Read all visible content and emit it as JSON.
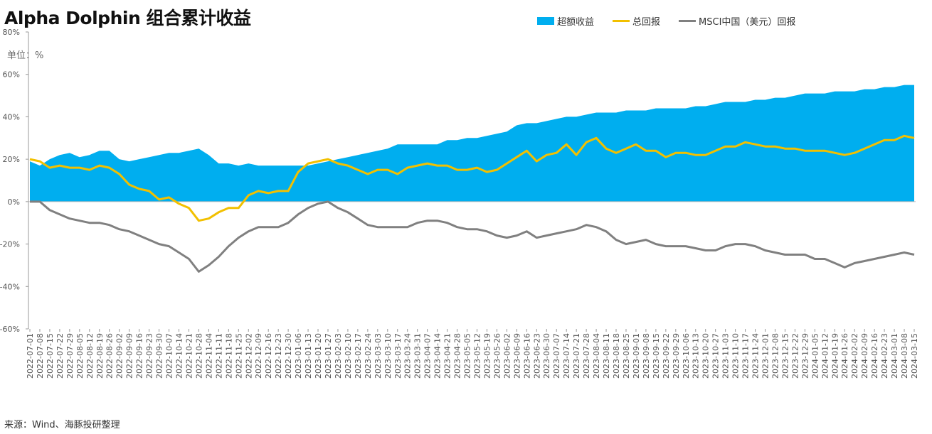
{
  "chart_data": {
    "type": "area",
    "title": "Alpha Dolphin 组合累计收益",
    "unit": "单位：%",
    "source": "来源：Wind、海豚投研整理",
    "ylim": [
      -60,
      80
    ],
    "yticks": [
      -60,
      -40,
      -20,
      0,
      20,
      40,
      60,
      80
    ],
    "ytick_labels": [
      "-60%",
      "-40%",
      "-20%",
      "0%",
      "20%",
      "40%",
      "60%",
      "80%"
    ],
    "legend_position": "top",
    "grid": false,
    "x": [
      "2022-07-01",
      "2022-07-08",
      "2022-07-15",
      "2022-07-22",
      "2022-07-29",
      "2022-08-05",
      "2022-08-12",
      "2022-08-19",
      "2022-08-26",
      "2022-09-02",
      "2022-09-09",
      "2022-09-16",
      "2022-09-23",
      "2022-09-30",
      "2022-10-07",
      "2022-10-14",
      "2022-10-21",
      "2022-10-28",
      "2022-11-04",
      "2022-11-11",
      "2022-11-18",
      "2022-11-25",
      "2022-12-02",
      "2022-12-09",
      "2022-12-16",
      "2022-12-23",
      "2022-12-30",
      "2023-01-06",
      "2023-01-13",
      "2023-01-20",
      "2023-01-27",
      "2023-02-03",
      "2023-02-10",
      "2023-02-17",
      "2023-02-24",
      "2023-03-03",
      "2023-03-10",
      "2023-03-17",
      "2023-03-24",
      "2023-03-31",
      "2023-04-07",
      "2023-04-14",
      "2023-04-21",
      "2023-04-28",
      "2023-05-05",
      "2023-05-12",
      "2023-05-19",
      "2023-05-26",
      "2023-06-02",
      "2023-06-09",
      "2023-06-16",
      "2023-06-23",
      "2023-06-30",
      "2023-07-07",
      "2023-07-14",
      "2023-07-21",
      "2023-07-28",
      "2023-08-04",
      "2023-08-11",
      "2023-08-18",
      "2023-08-25",
      "2023-09-01",
      "2023-09-08",
      "2023-09-15",
      "2023-09-22",
      "2023-09-29",
      "2023-10-06",
      "2023-10-13",
      "2023-10-20",
      "2023-10-27",
      "2023-11-03",
      "2023-11-10",
      "2023-11-17",
      "2023-11-24",
      "2023-12-01",
      "2023-12-08",
      "2023-12-15",
      "2023-12-22",
      "2023-12-29",
      "2024-01-05",
      "2024-01-12",
      "2024-01-19",
      "2024-01-26",
      "2024-02-02",
      "2024-02-09",
      "2024-02-16",
      "2024-02-23",
      "2024-03-01",
      "2024-03-08",
      "2024-03-15"
    ],
    "xtick_labels": [
      "2022-07-01",
      "2022-07-08",
      "2022-07-15",
      "2022-07-22",
      "2022-07-29",
      "2022-08-05",
      "2022-08-12",
      "2022-08-19",
      "2022-08-26",
      "2022-09-02",
      "2022-09-09",
      "2022-09-16",
      "2022-09-23",
      "2022-09-30",
      "2022-10-07",
      "2022-10-14",
      "2022-10-21",
      "2022-10-28",
      "2022-11-04",
      "2022-11-11",
      "2022-11-18",
      "2022-11-25",
      "2022-12-02",
      "2022-12-09",
      "2022-12-16",
      "2022-12-23",
      "2022-12-30",
      "2023-01-06",
      "2023-01-13",
      "2023-01-20",
      "2023-01-27",
      "2023-02-03",
      "2023-02-10",
      "2023-02-17",
      "2023-02-24",
      "2023-03-03",
      "2023-03-10",
      "2023-03-17",
      "2023-03-24",
      "2023-03-31",
      "2023-04-07",
      "2023-04-14",
      "2023-04-21",
      "2023-04-28",
      "2023-05-05",
      "2023-05-12",
      "2023-05-19",
      "2023-05-26",
      "2023-06-02",
      "2023-06-09",
      "2023-06-16",
      "2023-06-23",
      "2023-06-30",
      "2023-07-07",
      "2023-07-14",
      "2023-07-21",
      "2023-07-28",
      "2023-08-04",
      "2023-08-11",
      "2023-08-18",
      "2023-08-25",
      "2023-09-01",
      "2023-09-08",
      "2023-09-15",
      "2023-09-22",
      "2023-09-29",
      "2023-10-06",
      "2023-10-13",
      "2023-10-20",
      "2023-10-27",
      "2023-11-03",
      "2023-11-10",
      "2023-11-17",
      "2023-11-24",
      "2023-12-01",
      "2023-12-08",
      "2023-12-15",
      "2023-12-22",
      "2023-12-29",
      "2024-01-05",
      "2024-01-12",
      "2024-01-19",
      "2024-01-26",
      "2024-02-02",
      "2024-02-09",
      "2024-02-16",
      "2024-02-23",
      "2024-03-01",
      "2024-03-08",
      "2024-03-15"
    ],
    "series": [
      {
        "name": "超额收益",
        "type": "area",
        "color": "#00AEEF",
        "values": [
          19,
          17,
          20,
          22,
          23,
          21,
          22,
          24,
          24,
          20,
          19,
          20,
          21,
          22,
          23,
          23,
          24,
          25,
          22,
          18,
          18,
          17,
          18,
          17,
          17,
          17,
          17,
          17,
          17,
          18,
          19,
          20,
          21,
          22,
          23,
          24,
          25,
          27,
          27,
          27,
          27,
          27,
          29,
          29,
          30,
          30,
          31,
          32,
          33,
          36,
          37,
          37,
          38,
          39,
          40,
          40,
          41,
          42,
          42,
          42,
          43,
          43,
          43,
          44,
          44,
          44,
          44,
          45,
          45,
          46,
          47,
          47,
          47,
          48,
          48,
          49,
          49,
          50,
          51,
          51,
          51,
          52,
          52,
          52,
          53,
          53,
          54,
          54,
          55,
          55
        ]
      },
      {
        "name": "总回报",
        "type": "line",
        "color": "#F2C000",
        "values": [
          20,
          19,
          16,
          17,
          16,
          16,
          15,
          17,
          16,
          13,
          8,
          6,
          5,
          1,
          2,
          -1,
          -3,
          -9,
          -8,
          -5,
          -3,
          -3,
          3,
          5,
          4,
          5,
          5,
          14,
          18,
          19,
          20,
          18,
          17,
          15,
          13,
          15,
          15,
          13,
          16,
          17,
          18,
          17,
          17,
          15,
          15,
          16,
          14,
          15,
          18,
          21,
          24,
          19,
          22,
          23,
          27,
          22,
          28,
          30,
          25,
          23,
          25,
          27,
          24,
          24,
          21,
          23,
          23,
          22,
          22,
          24,
          26,
          26,
          28,
          27,
          26,
          26,
          25,
          25,
          24,
          24,
          24,
          23,
          22,
          23,
          25,
          27,
          29,
          29,
          31,
          30
        ]
      },
      {
        "name": "MSCI中国（美元）回报",
        "type": "line",
        "color": "#808080",
        "values": [
          0,
          0,
          -4,
          -6,
          -8,
          -9,
          -10,
          -10,
          -11,
          -13,
          -14,
          -16,
          -18,
          -20,
          -21,
          -24,
          -27,
          -33,
          -30,
          -26,
          -21,
          -17,
          -14,
          -12,
          -12,
          -12,
          -10,
          -6,
          -3,
          -1,
          0,
          -3,
          -5,
          -8,
          -11,
          -12,
          -12,
          -12,
          -12,
          -10,
          -9,
          -9,
          -10,
          -12,
          -13,
          -13,
          -14,
          -16,
          -17,
          -16,
          -14,
          -17,
          -16,
          -15,
          -14,
          -13,
          -11,
          -12,
          -14,
          -18,
          -20,
          -19,
          -18,
          -20,
          -21,
          -21,
          -21,
          -22,
          -23,
          -23,
          -21,
          -20,
          -20,
          -21,
          -23,
          -24,
          -25,
          -25,
          -25,
          -27,
          -27,
          -29,
          -31,
          -29,
          -28,
          -27,
          -26,
          -25,
          -24,
          -25
        ]
      }
    ]
  }
}
